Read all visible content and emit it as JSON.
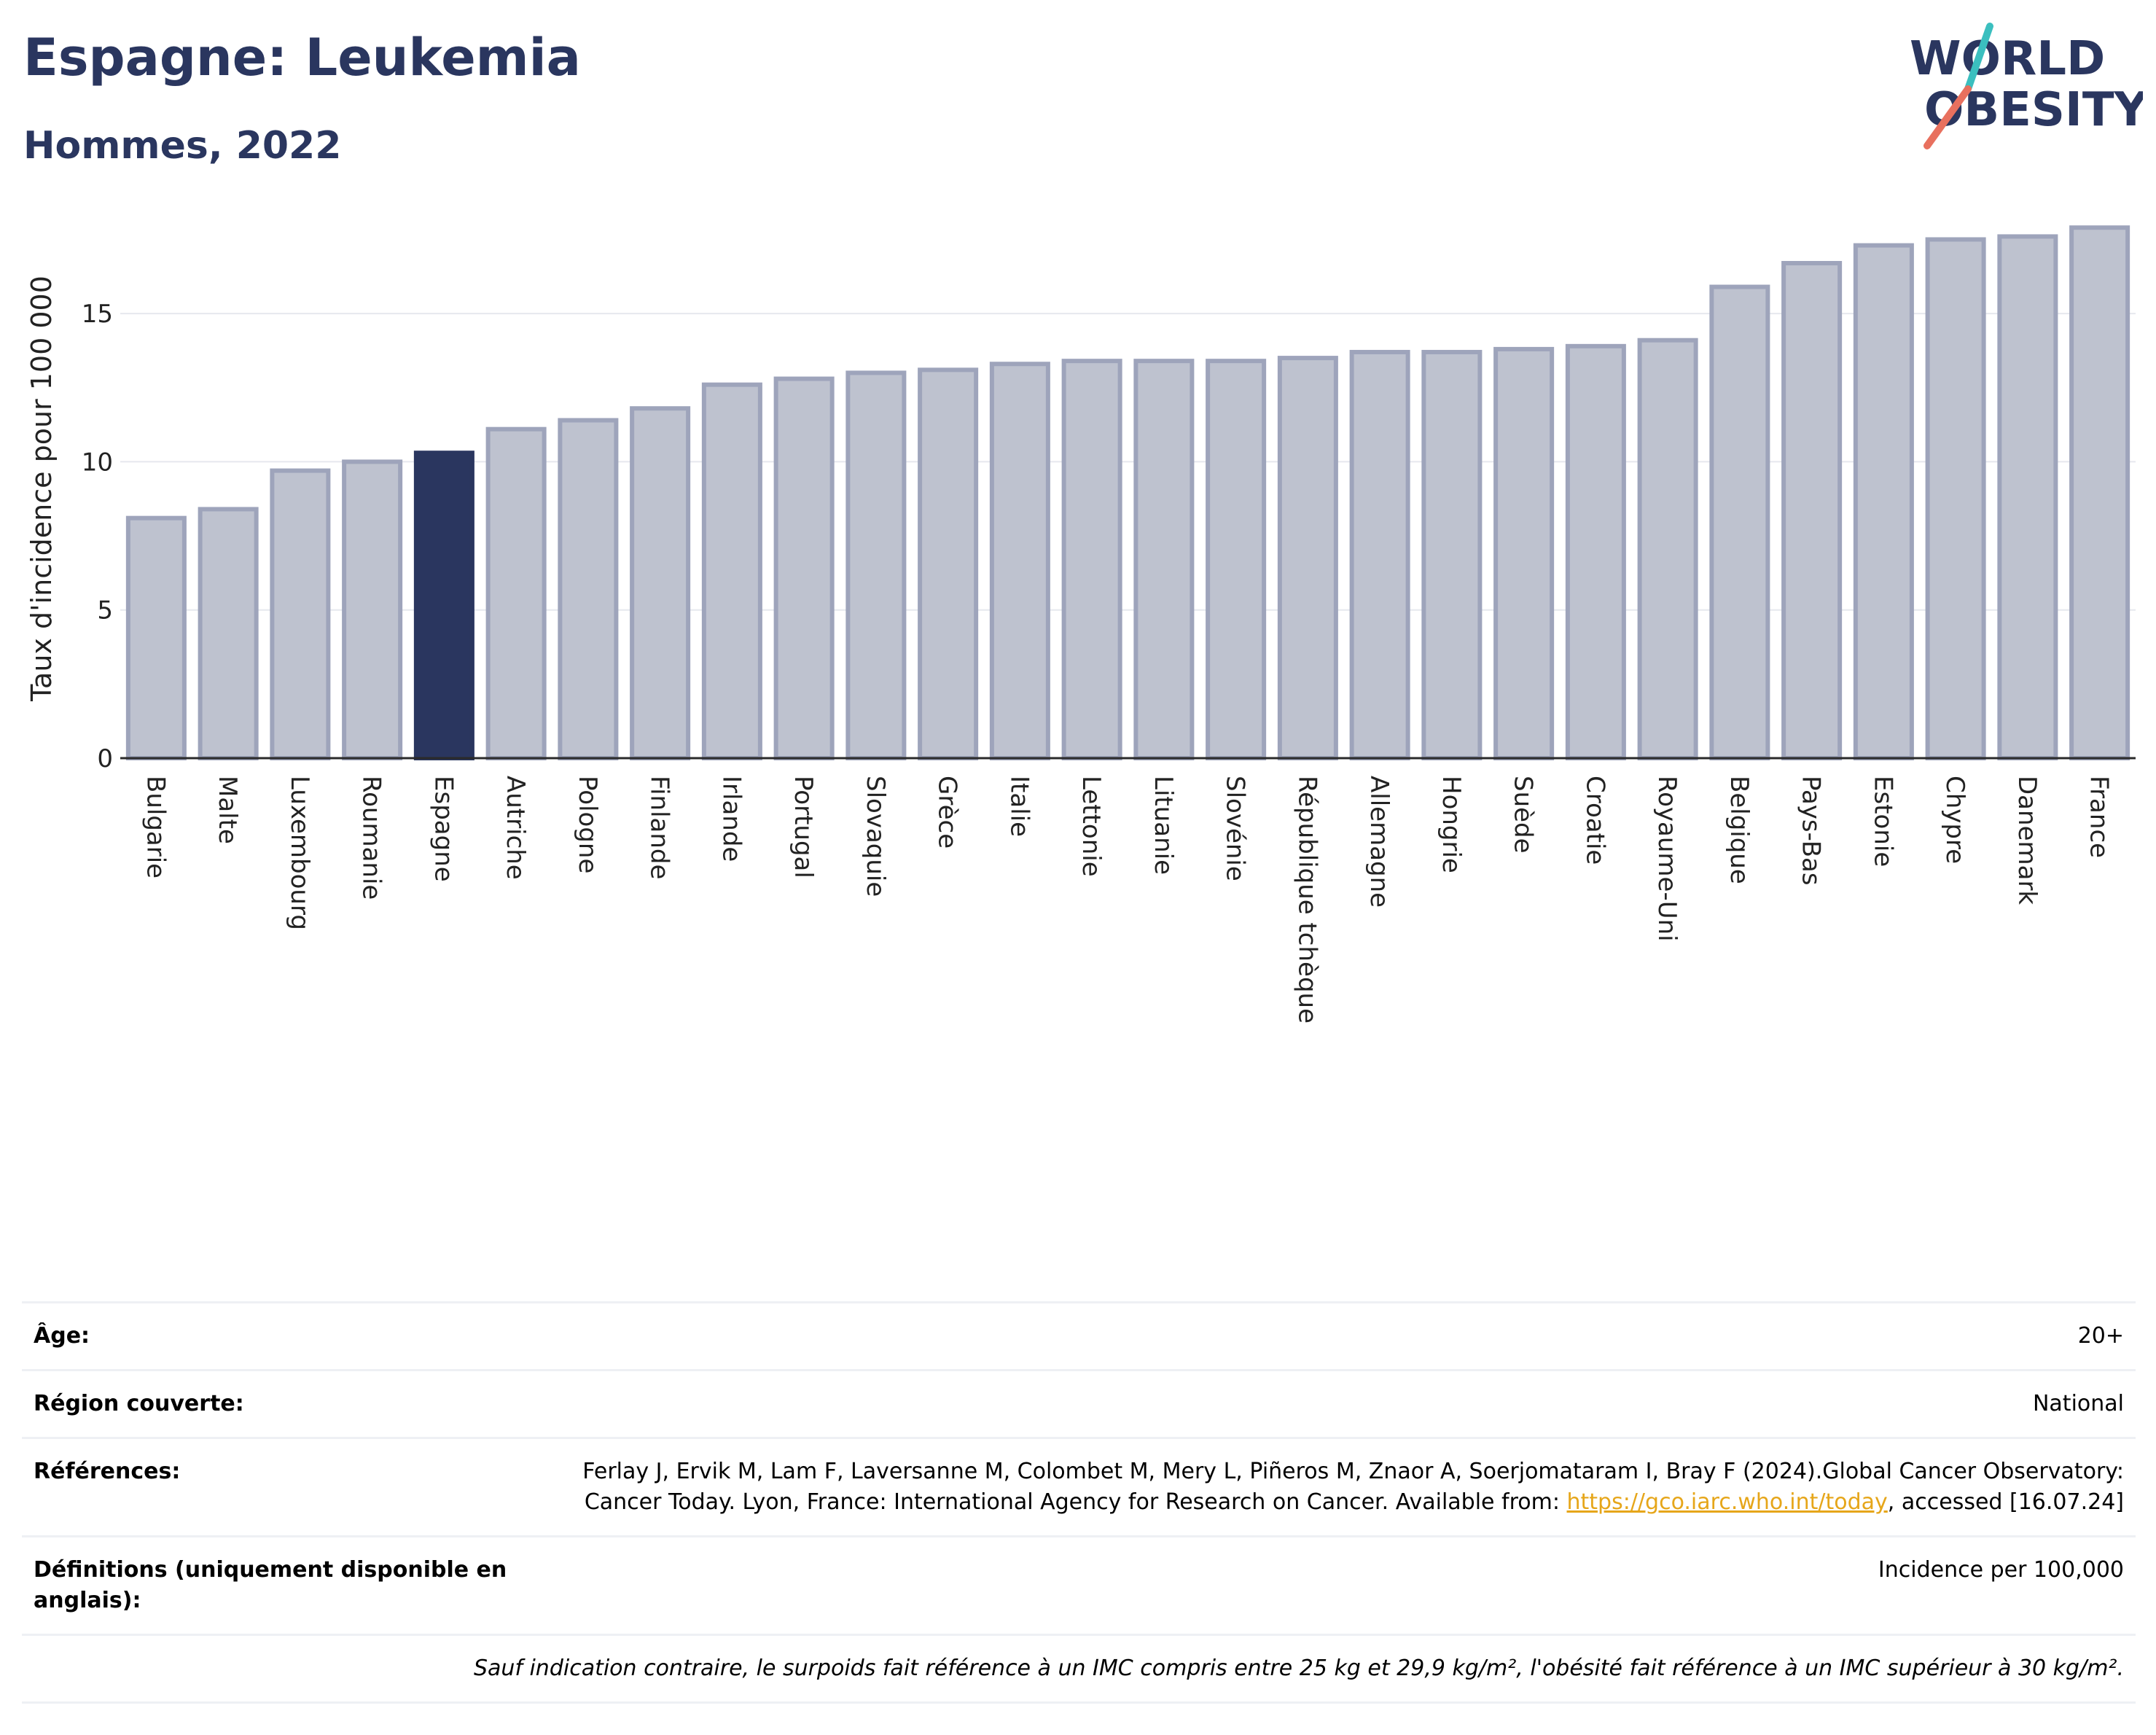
{
  "header": {
    "title": "Espagne: Leukemia",
    "subtitle": "Hommes, 2022",
    "logo_text": [
      "WORLD",
      "OBESITY"
    ]
  },
  "colors": {
    "title": "#2a365f",
    "bar_default": "#bec2cf",
    "bar_default_border": "#9ea4bb",
    "bar_highlight": "#2a365f",
    "gridline": "#e6e8ee",
    "link": "#e6a61a",
    "logo_slash_teal": "#3bbfbf",
    "logo_slash_coral": "#e8705e"
  },
  "chart_data": {
    "type": "bar",
    "ylabel": "Taux d'incidence pour 100 000",
    "xlabel": "",
    "ylim": [
      0,
      18.2
    ],
    "yticks": [
      0,
      5,
      10,
      15
    ],
    "grid": true,
    "highlight": "Espagne",
    "categories": [
      "Bulgarie",
      "Malte",
      "Luxembourg",
      "Roumanie",
      "Espagne",
      "Autriche",
      "Pologne",
      "Finlande",
      "Irlande",
      "Portugal",
      "Slovaquie",
      "Grèce",
      "Italie",
      "Lettonie",
      "Lituanie",
      "Slovénie",
      "République tchèque",
      "Allemagne",
      "Hongrie",
      "Suède",
      "Croatie",
      "Royaume-Uni",
      "Belgique",
      "Pays-Bas",
      "Estonie",
      "Chypre",
      "Danemark",
      "France"
    ],
    "values": [
      8.1,
      8.4,
      9.7,
      10.0,
      10.3,
      11.1,
      11.4,
      11.8,
      12.6,
      12.8,
      13.0,
      13.1,
      13.3,
      13.4,
      13.4,
      13.4,
      13.5,
      13.7,
      13.7,
      13.8,
      13.9,
      14.1,
      15.9,
      16.7,
      17.3,
      17.5,
      17.6,
      17.9
    ]
  },
  "meta": {
    "rows": [
      {
        "label": "Âge:",
        "value": "20+"
      },
      {
        "label": "Région couverte:",
        "value": "National"
      },
      {
        "label": "Références:",
        "value_before": "Ferlay J, Ervik M, Lam F, Laversanne M, Colombet M, Mery L, Piñeros M, Znaor A, Soerjomataram I, Bray F (2024).Global Cancer Observatory: Cancer Today. Lyon, France: International Agency for Research on Cancer. Available from: ",
        "link": "https://gco.iarc.who.int/today",
        "value_after": ", accessed [16.07.24]"
      },
      {
        "label": "Définitions (uniquement disponible en anglais):",
        "value": "Incidence per 100,000"
      }
    ],
    "note": "Sauf indication contraire, le surpoids fait référence à un IMC compris entre 25 kg et 29,9 kg/m², l'obésité fait référence à un IMC supérieur à 30 kg/m²."
  }
}
